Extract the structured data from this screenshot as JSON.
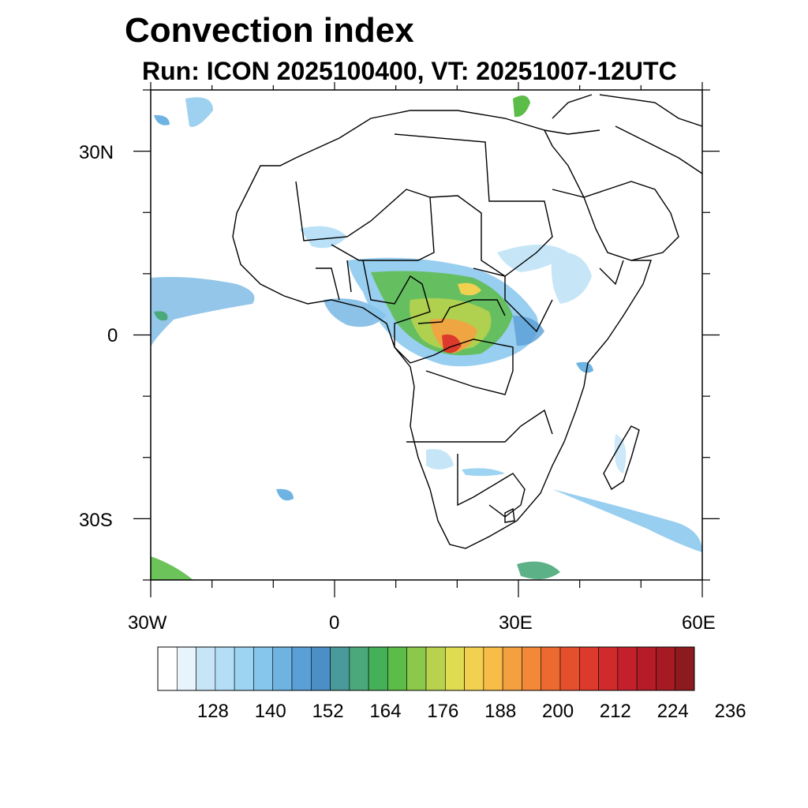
{
  "title": "Convection index",
  "subtitle": "Run: ICON 2025100400,  VT: 20251007-12UTC",
  "map": {
    "lon_range": [
      -30,
      60
    ],
    "lat_range": [
      -40,
      40
    ],
    "lat_tick_labels": [
      "30N",
      "0",
      "30S"
    ],
    "lon_tick_labels": [
      "30W",
      "0",
      "30E",
      "60E"
    ]
  },
  "colorbar": {
    "labels": [
      "128",
      "140",
      "152",
      "164",
      "176",
      "188",
      "200",
      "212",
      "224",
      "236"
    ],
    "colors": [
      "#ffffff",
      "#e8f4fc",
      "#c6e6f8",
      "#b3def6",
      "#9dd4f2",
      "#86c6ec",
      "#6fb3e2",
      "#5a9fd6",
      "#4b8fc6",
      "#4a9a9c",
      "#4aa87a",
      "#44b058",
      "#5cbc48",
      "#8cc84a",
      "#b8d24e",
      "#e0dc52",
      "#f2d050",
      "#f8bc48",
      "#f5a040",
      "#f28838",
      "#ec6a30",
      "#e4502c",
      "#dc3a2c",
      "#d02a2c",
      "#c4202c",
      "#b61c28",
      "#a61a24",
      "#8c1a1e"
    ]
  }
}
